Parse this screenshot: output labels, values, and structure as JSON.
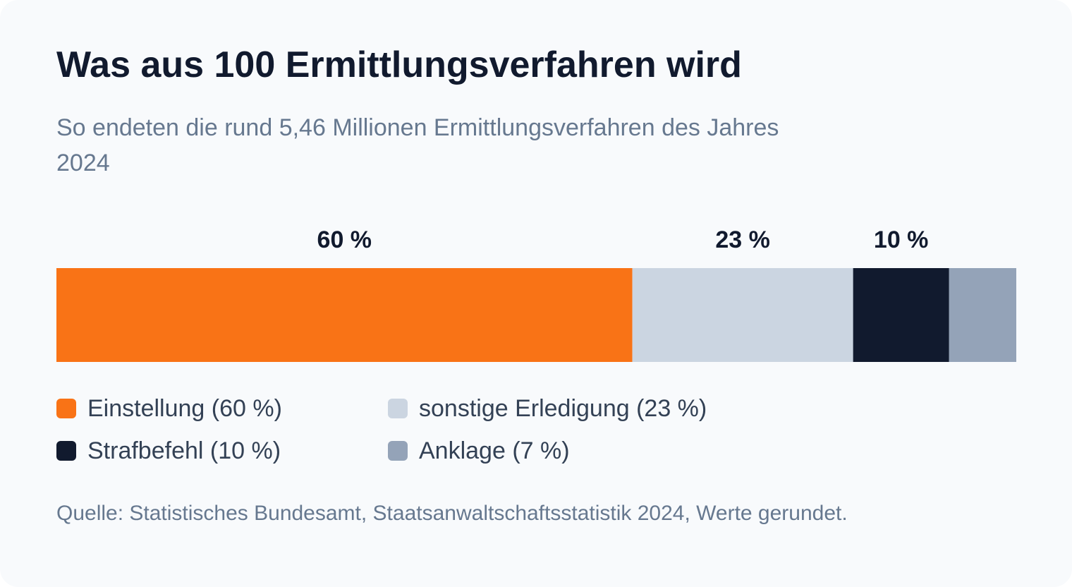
{
  "title": "Was aus 100 Ermittlungsverfahren wird",
  "subtitle": "So endeten die rund 5,46 Millionen Ermittlungsverfahren des Jahres 2024",
  "source": "Quelle: Statistisches Bundesamt, Staatsanwaltschaftsstatistik 2024, Werte gerundet.",
  "chart_data": {
    "type": "bar",
    "orientation": "horizontal-stacked-100",
    "unit": "%",
    "series": [
      {
        "name": "Einstellung",
        "value": 60,
        "data_label": "60 %",
        "legend_label": "Einstellung (60 %)",
        "color": "#f97316"
      },
      {
        "name": "sonstige Erledigung",
        "value": 23,
        "data_label": "23 %",
        "legend_label": "sonstige Erledigung (23 %)",
        "color": "#cbd5e1"
      },
      {
        "name": "Strafbefehl",
        "value": 10,
        "data_label": "10 %",
        "legend_label": "Strafbefehl (10 %)",
        "color": "#111a2e"
      },
      {
        "name": "Anklage",
        "value": 7,
        "data_label": "",
        "legend_label": "Anklage (7 %)",
        "color": "#94a3b8"
      }
    ],
    "total": 100,
    "legend_position": "bottom",
    "grid": false
  }
}
